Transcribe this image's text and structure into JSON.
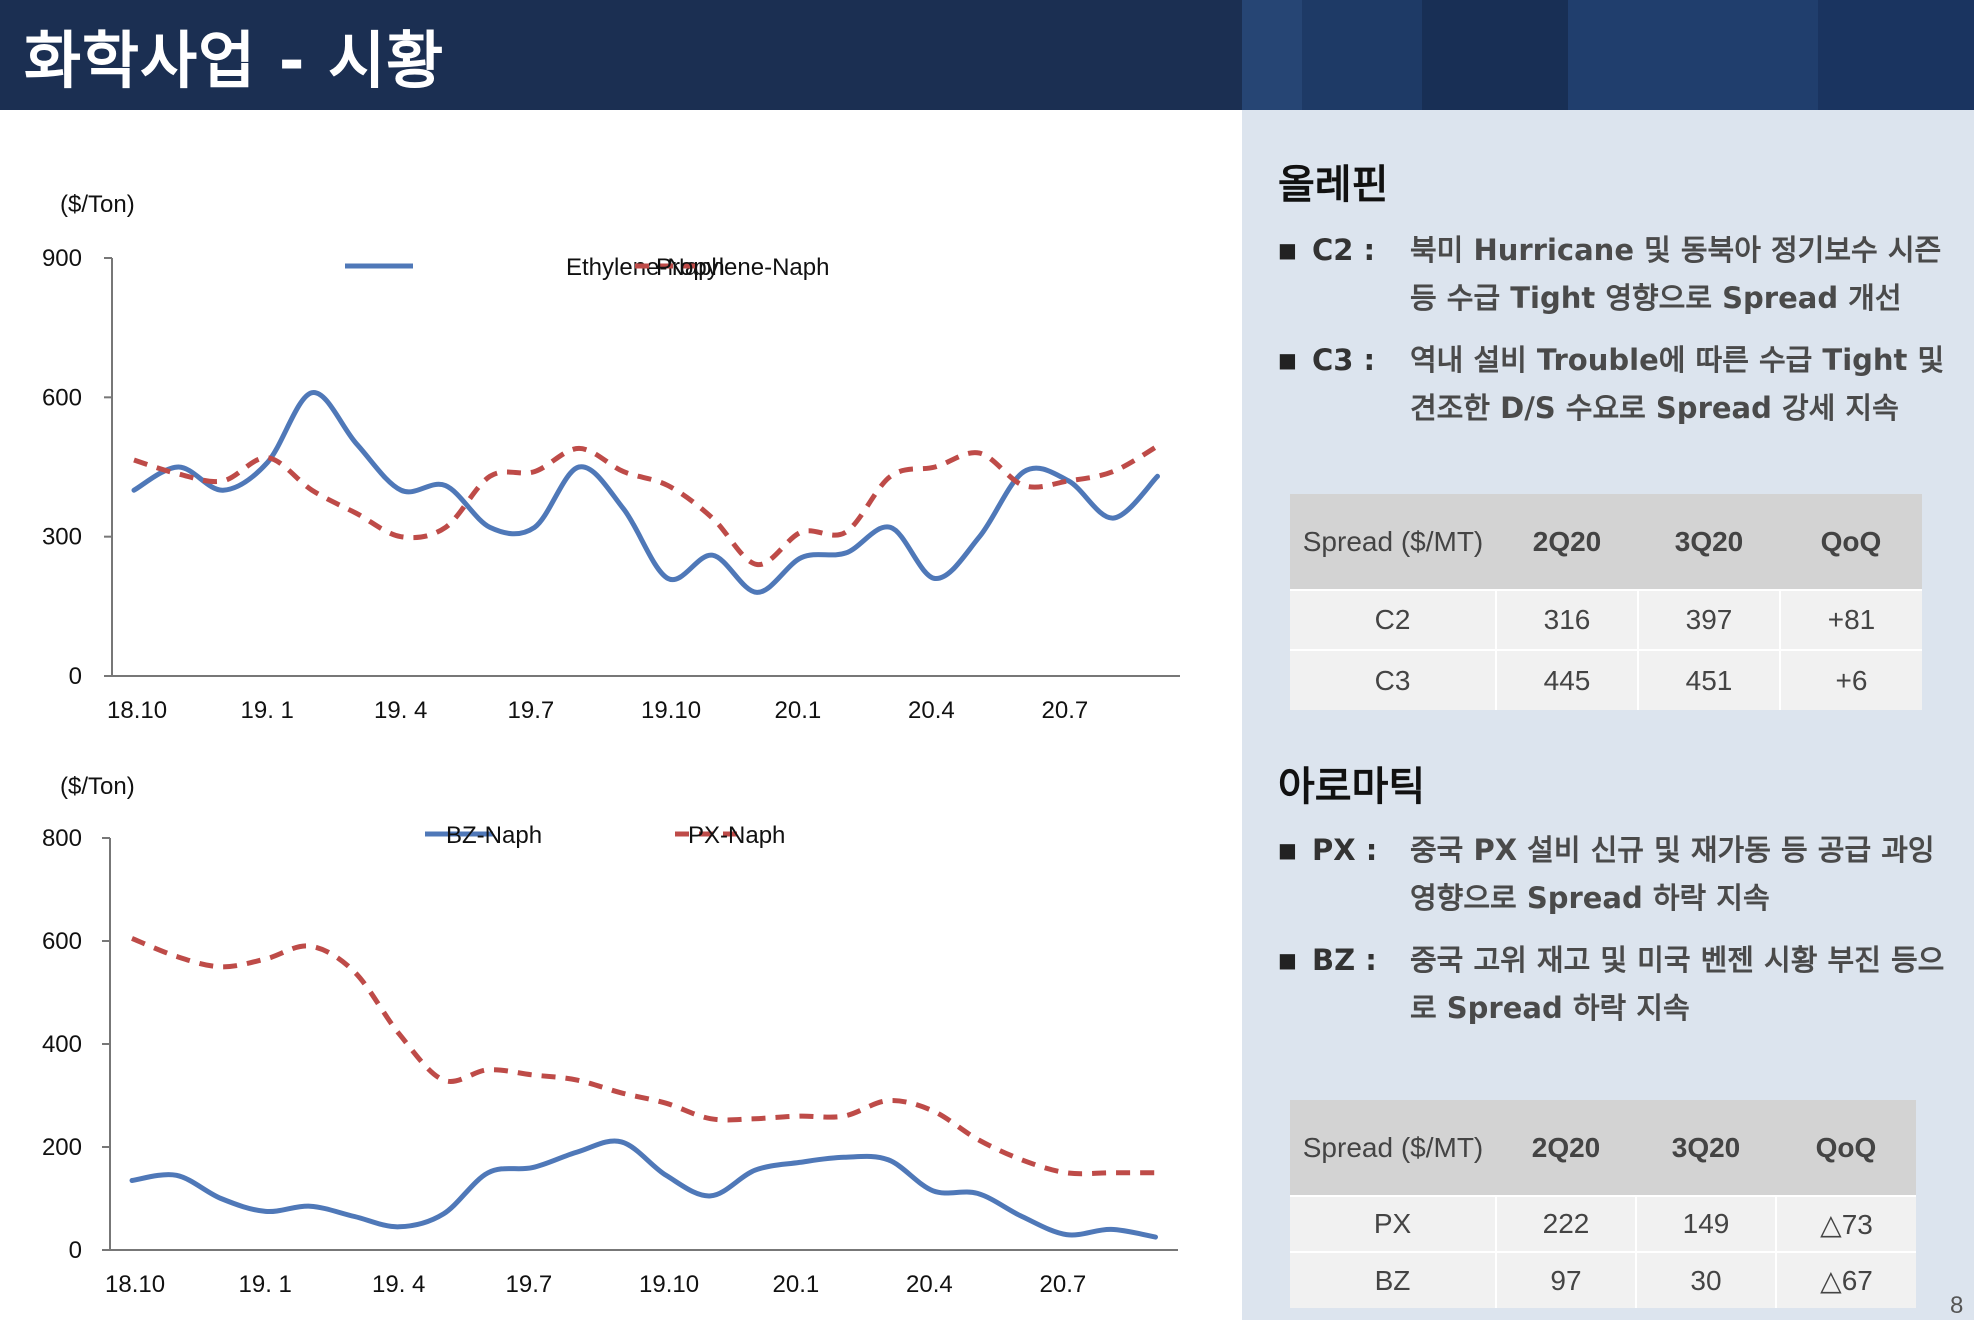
{
  "page": {
    "title": "화학사업 - 시황",
    "page_number": "8"
  },
  "colors": {
    "header_bg": "#1b2f52",
    "panel_bg": "#dce4ee",
    "series_blue": "#4f78b8",
    "series_red": "#be4b48"
  },
  "olefin": {
    "title": "올레핀",
    "bullets": [
      {
        "key": "C2 :",
        "text": "북미 Hurricane 및 동북아 정기보수 시즌 등 수급 Tight 영향으로 Spread 개선"
      },
      {
        "key": "C3 :",
        "text": "역내 설비 Trouble에 따른 수급 Tight 및 견조한 D/S 수요로 Spread 강세 지속"
      }
    ],
    "table": {
      "headers": [
        "Spread ($/MT)",
        "2Q20",
        "3Q20",
        "QoQ"
      ],
      "rows": [
        [
          "C2",
          "316",
          "397",
          "+81"
        ],
        [
          "C3",
          "445",
          "451",
          "+6"
        ]
      ]
    }
  },
  "aromatic": {
    "title": "아로마틱",
    "bullets": [
      {
        "key": "PX :",
        "text": "중국 PX 설비 신규 및 재가동 등 공급 과잉 영향으로 Spread 하락 지속"
      },
      {
        "key": "BZ :",
        "text": "중국 고위 재고 및 미국 벤젠 시황 부진 등으로 Spread 하락 지속"
      }
    ],
    "table": {
      "headers": [
        "Spread ($/MT)",
        "2Q20",
        "3Q20",
        "QoQ"
      ],
      "rows": [
        [
          "PX",
          "222",
          "149",
          "△73"
        ],
        [
          "BZ",
          "97",
          "30",
          "△67"
        ]
      ]
    }
  },
  "chart_data": [
    {
      "type": "line",
      "title": "",
      "ylabel": "($/Ton)",
      "xlabel": "",
      "ylim": [
        0,
        900
      ],
      "yticks": [
        0,
        300,
        600,
        900
      ],
      "xticks": [
        "18.10",
        "19. 1",
        "19. 4",
        "19.7",
        "19.10",
        "20.1",
        "20.4",
        "20.7"
      ],
      "legend": "top-center",
      "x_months": 24,
      "series": [
        {
          "name": "Ethylene-Naph",
          "style": "solid",
          "color": "#4f78b8",
          "values": [
            400,
            450,
            400,
            460,
            610,
            500,
            400,
            410,
            320,
            320,
            450,
            360,
            210,
            260,
            180,
            255,
            265,
            320,
            210,
            300,
            440,
            420,
            340,
            430
          ]
        },
        {
          "name": "Propylene-Naph",
          "style": "dashed",
          "color": "#be4b48",
          "values": [
            465,
            435,
            420,
            470,
            400,
            350,
            300,
            320,
            430,
            440,
            490,
            440,
            410,
            340,
            240,
            310,
            310,
            430,
            450,
            480,
            410,
            420,
            440,
            495
          ]
        }
      ]
    },
    {
      "type": "line",
      "title": "",
      "ylabel": "($/Ton)",
      "xlabel": "",
      "ylim": [
        0,
        800
      ],
      "yticks": [
        0,
        200,
        400,
        600,
        800
      ],
      "xticks": [
        "18.10",
        "19. 1",
        "19. 4",
        "19.7",
        "19.10",
        "20.1",
        "20.4",
        "20.7"
      ],
      "legend": "top-center",
      "x_months": 24,
      "series": [
        {
          "name": "BZ-Naph",
          "style": "solid",
          "color": "#4f78b8",
          "values": [
            135,
            145,
            100,
            75,
            85,
            65,
            45,
            70,
            150,
            160,
            190,
            210,
            145,
            105,
            155,
            170,
            180,
            175,
            115,
            110,
            65,
            30,
            40,
            25
          ]
        },
        {
          "name": "PX-Naph",
          "style": "dashed",
          "color": "#be4b48",
          "values": [
            605,
            570,
            550,
            565,
            590,
            540,
            420,
            330,
            350,
            340,
            330,
            305,
            285,
            255,
            255,
            260,
            260,
            290,
            270,
            215,
            175,
            150,
            150,
            150
          ]
        }
      ]
    }
  ]
}
